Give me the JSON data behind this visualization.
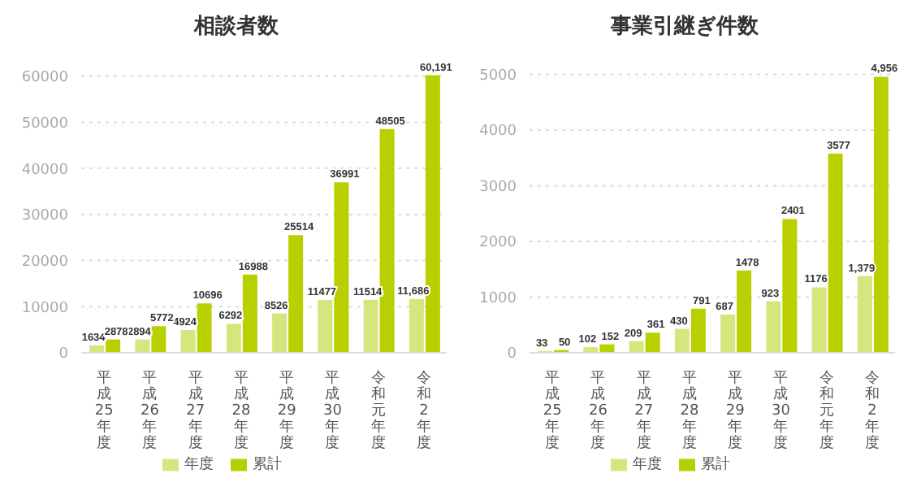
{
  "chart_data": [
    {
      "type": "bar",
      "title": "相談者数",
      "categories": [
        "平成25年度",
        "平成26年度",
        "平成27年度",
        "平成28年度",
        "平成29年度",
        "平成30年度",
        "令和元年度",
        "令和2年度"
      ],
      "series": [
        {
          "name": "年度",
          "color": "#d6e67e",
          "values": [
            1634,
            2894,
            4924,
            6292,
            8526,
            11477,
            11514,
            11686
          ],
          "value_labels": [
            "1634",
            "2894",
            "4924",
            "6292",
            "8526",
            "11477",
            "11514",
            "11,686"
          ]
        },
        {
          "name": "累計",
          "color": "#b8d000",
          "values": [
            2878,
            5772,
            10696,
            16988,
            25514,
            36991,
            48505,
            60191
          ],
          "value_labels": [
            "2878",
            "5772",
            "10696",
            "16988",
            "25514",
            "36991",
            "48505",
            "60,191"
          ]
        }
      ],
      "ylim": [
        0,
        61000
      ],
      "yticks": [
        0,
        10000,
        20000,
        30000,
        40000,
        50000,
        60000
      ],
      "grid": "y",
      "legend": "bottom"
    },
    {
      "type": "bar",
      "title": "事業引継ぎ件数",
      "categories": [
        "平成25年度",
        "平成26年度",
        "平成27年度",
        "平成28年度",
        "平成29年度",
        "平成30年度",
        "令和元年度",
        "令和2年度"
      ],
      "series": [
        {
          "name": "年度",
          "color": "#d6e67e",
          "values": [
            33,
            102,
            209,
            430,
            687,
            923,
            1176,
            1379
          ],
          "value_labels": [
            "33",
            "102",
            "209",
            "430",
            "687",
            "923",
            "1176",
            "1,379"
          ]
        },
        {
          "name": "累計",
          "color": "#b8d000",
          "values": [
            50,
            152,
            361,
            791,
            1478,
            2401,
            3577,
            4956
          ],
          "value_labels": [
            "50",
            "152",
            "361",
            "791",
            "1478",
            "2401",
            "3577",
            "4,956"
          ]
        }
      ],
      "ylim": [
        0,
        5050
      ],
      "yticks": [
        0,
        1000,
        2000,
        3000,
        4000,
        5000
      ],
      "grid": "y",
      "legend": "bottom"
    }
  ]
}
